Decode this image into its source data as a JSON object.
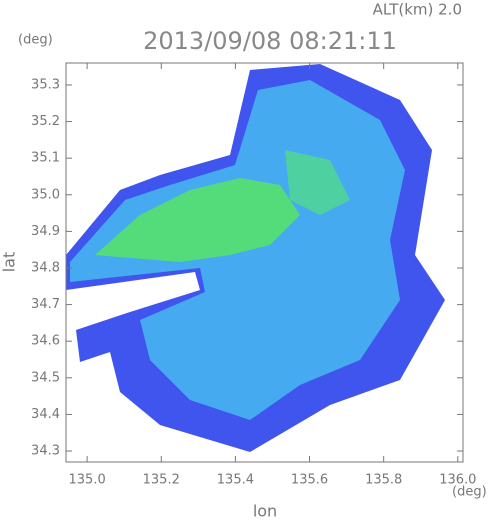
{
  "chart_data": {
    "type": "map",
    "title": "2013/09/08 08:21:11",
    "altitude_label": "ALT(km) 2.0",
    "y_unit": "(deg)",
    "x_unit": "(deg)",
    "xlabel": "lon",
    "ylabel": "lat",
    "xlim": [
      134.943,
      136.014
    ],
    "ylim": [
      34.27,
      35.36
    ],
    "xticks": [
      {
        "value": 135.0,
        "label": "135.0"
      },
      {
        "value": 135.2,
        "label": "135.2"
      },
      {
        "value": 135.4,
        "label": "135.4"
      },
      {
        "value": 135.6,
        "label": "135.6"
      },
      {
        "value": 135.8,
        "label": "135.8"
      },
      {
        "value": 136.0,
        "label": "136.0"
      }
    ],
    "yticks": [
      {
        "value": 34.3,
        "label": "34.3"
      },
      {
        "value": 34.4,
        "label": "34.4"
      },
      {
        "value": 34.5,
        "label": "34.5"
      },
      {
        "value": 34.6,
        "label": "34.6"
      },
      {
        "value": 34.7,
        "label": "34.7"
      },
      {
        "value": 34.8,
        "label": "34.8"
      },
      {
        "value": 34.9,
        "label": "34.9"
      },
      {
        "value": 35.0,
        "label": "35.0"
      },
      {
        "value": 35.1,
        "label": "35.1"
      },
      {
        "value": 35.2,
        "label": "35.2"
      },
      {
        "value": 35.3,
        "label": "35.3"
      }
    ]
  }
}
